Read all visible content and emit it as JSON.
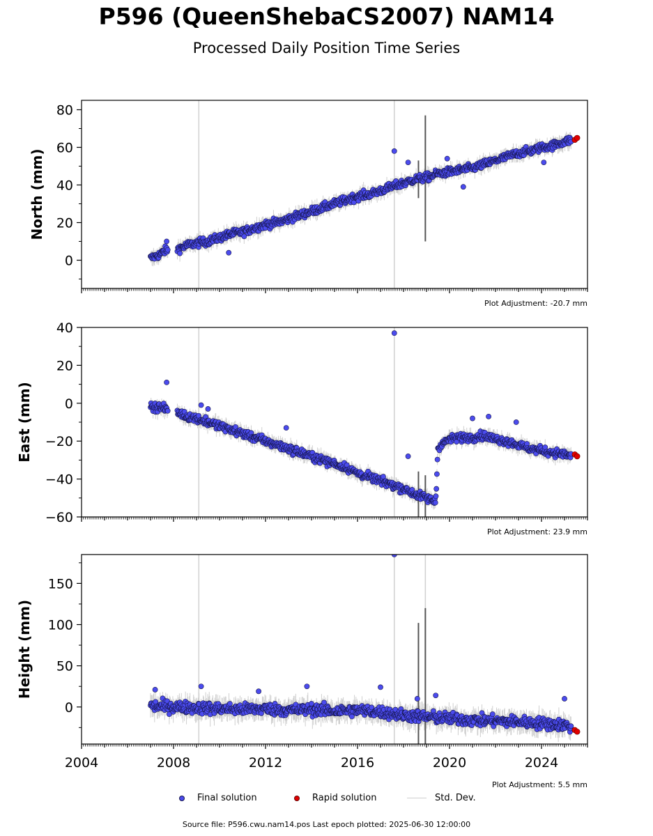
{
  "title": "P596 (QueenShebaCS2007) NAM14",
  "subtitle": "Processed Daily Position Time Series",
  "colors": {
    "final": "#4b4bee",
    "final_edge": "#15154a",
    "rapid": "#e00000",
    "stddev": "#cfcfcf",
    "vline": "#d0d0d0"
  },
  "legend": {
    "final": "Final solution",
    "rapid": "Rapid solution",
    "stddev": "Std. Dev."
  },
  "source_text": "Source file: P596.cwu.nam14.pos  Last epoch plotted: 2025-06-30 12:00:00",
  "chart_data": [
    {
      "type": "scatter",
      "panel": "north",
      "ylabel": "North (mm)",
      "adjustment": "Plot Adjustment: -20.7 mm",
      "xlim": [
        2004.0,
        2026.0
      ],
      "ylim": [
        -15,
        85
      ],
      "yticks": [
        0,
        20,
        40,
        60,
        80
      ],
      "ytick_labels": [
        "0",
        "20",
        "40",
        "60",
        "80"
      ],
      "event_lines": [
        2009.1,
        2017.6
      ],
      "series": [
        {
          "name": "Final solution",
          "x": [
            2007.0,
            2007.2,
            2007.4,
            2007.6,
            2008.2,
            2008.6,
            2009.0,
            2009.5,
            2010.0,
            2010.5,
            2011.0,
            2011.5,
            2012.0,
            2012.5,
            2013.0,
            2013.5,
            2014.0,
            2014.5,
            2015.0,
            2015.5,
            2016.0,
            2016.5,
            2017.0,
            2017.5,
            2018.0,
            2018.5,
            2019.0,
            2019.5,
            2020.0,
            2020.5,
            2021.0,
            2021.5,
            2022.0,
            2022.5,
            2023.0,
            2023.5,
            2024.0,
            2024.5,
            2025.0,
            2025.3
          ],
          "y": [
            1,
            2,
            3,
            5,
            6,
            8,
            9,
            10,
            12,
            14,
            15,
            17,
            19,
            20,
            22,
            24,
            26,
            28,
            30,
            32,
            34,
            35,
            37,
            39,
            41,
            43,
            44,
            46,
            47,
            48,
            49,
            51,
            53,
            55,
            57,
            58,
            60,
            61,
            63,
            64
          ]
        },
        {
          "name": "Rapid solution",
          "x": [
            2025.45,
            2025.55
          ],
          "y": [
            64,
            65
          ]
        }
      ],
      "outliers": {
        "x": [
          2007.7,
          2010.4,
          2017.6,
          2018.2,
          2019.9,
          2020.6,
          2024.1
        ],
        "y": [
          10,
          4,
          58,
          52,
          54,
          39,
          52
        ]
      },
      "stddev_spikes": [
        [
          2018.65,
          33,
          53
        ],
        [
          2018.95,
          10,
          77
        ]
      ]
    },
    {
      "type": "scatter",
      "panel": "east",
      "ylabel": "East (mm)",
      "adjustment": "Plot Adjustment: 23.9 mm",
      "xlim": [
        2004.0,
        2026.0
      ],
      "ylim": [
        -60,
        40
      ],
      "yticks": [
        -60,
        -40,
        -20,
        0,
        20,
        40
      ],
      "ytick_labels": [
        "−60",
        "−40",
        "−20",
        "0",
        "20",
        "40"
      ],
      "event_lines": [
        2009.1,
        2017.6
      ],
      "series": [
        {
          "name": "Final solution",
          "x": [
            2007.0,
            2007.2,
            2007.4,
            2007.6,
            2008.2,
            2008.6,
            2009.0,
            2009.5,
            2010.0,
            2010.5,
            2011.0,
            2011.5,
            2012.0,
            2012.5,
            2013.0,
            2013.5,
            2014.0,
            2014.5,
            2015.0,
            2015.5,
            2016.0,
            2016.5,
            2017.0,
            2017.5,
            2018.0,
            2018.5,
            2019.0,
            2019.4,
            2019.5,
            2020.0,
            2020.5,
            2021.0,
            2021.5,
            2022.0,
            2022.5,
            2023.0,
            2023.5,
            2024.0,
            2024.5,
            2025.0,
            2025.3
          ],
          "y": [
            -1,
            -2,
            -2,
            -3,
            -5,
            -7,
            -8,
            -10,
            -12,
            -14,
            -16,
            -18,
            -20,
            -22,
            -24,
            -26,
            -28,
            -30,
            -32,
            -34,
            -37,
            -39,
            -41,
            -43,
            -45,
            -48,
            -50,
            -52,
            -23,
            -19,
            -18,
            -18,
            -17,
            -19,
            -20,
            -22,
            -24,
            -25,
            -26,
            -27,
            -28
          ]
        },
        {
          "name": "Rapid solution",
          "x": [
            2025.45,
            2025.55
          ],
          "y": [
            -27,
            -28
          ]
        }
      ],
      "outliers": {
        "x": [
          2007.7,
          2009.2,
          2009.5,
          2012.9,
          2017.6,
          2018.2,
          2021.0,
          2021.7,
          2022.9
        ],
        "y": [
          11,
          -1,
          -3,
          -13,
          37,
          -28,
          -8,
          -7,
          -10
        ]
      },
      "stddev_spikes": [
        [
          2018.65,
          -60,
          -36
        ],
        [
          2018.95,
          -60,
          -38
        ]
      ]
    },
    {
      "type": "scatter",
      "panel": "height",
      "ylabel": "Height (mm)",
      "adjustment": "Plot Adjustment: 5.5 mm",
      "xlim": [
        2004.0,
        2026.0
      ],
      "ylim": [
        -45,
        185
      ],
      "yticks": [
        0,
        50,
        100,
        150
      ],
      "ytick_labels": [
        "0",
        "50",
        "100",
        "150"
      ],
      "xticks": [
        2004,
        2008,
        2012,
        2016,
        2020,
        2024
      ],
      "xtick_labels": [
        "2004",
        "2008",
        "2012",
        "2016",
        "2020",
        "2024"
      ],
      "event_lines": [
        2009.1,
        2017.6,
        2018.95
      ],
      "series": [
        {
          "name": "Final solution",
          "x": [
            2007.0,
            2007.4,
            2007.6,
            2008.2,
            2009.0,
            2010.0,
            2011.0,
            2012.0,
            2013.0,
            2014.0,
            2015.0,
            2016.0,
            2017.0,
            2017.5,
            2018.0,
            2018.5,
            2019.0,
            2020.0,
            2021.0,
            2022.0,
            2023.0,
            2024.0,
            2025.0,
            2025.3
          ],
          "y": [
            2,
            0,
            1,
            0,
            -1,
            -2,
            -3,
            -2,
            -4,
            -3,
            -5,
            -4,
            -6,
            -8,
            -10,
            -11,
            -12,
            -14,
            -16,
            -17,
            -18,
            -20,
            -22,
            -24
          ]
        },
        {
          "name": "Rapid solution",
          "x": [
            2025.45,
            2025.55
          ],
          "y": [
            -28,
            -30
          ]
        }
      ],
      "outliers": {
        "x": [
          2007.2,
          2009.2,
          2011.7,
          2013.8,
          2017.0,
          2017.6,
          2018.6,
          2019.4,
          2025.0
        ],
        "y": [
          21,
          25,
          19,
          25,
          24,
          185,
          10,
          14,
          10
        ]
      },
      "stddev_spikes": [
        [
          2018.65,
          -45,
          102
        ],
        [
          2018.95,
          -45,
          120
        ]
      ]
    }
  ]
}
